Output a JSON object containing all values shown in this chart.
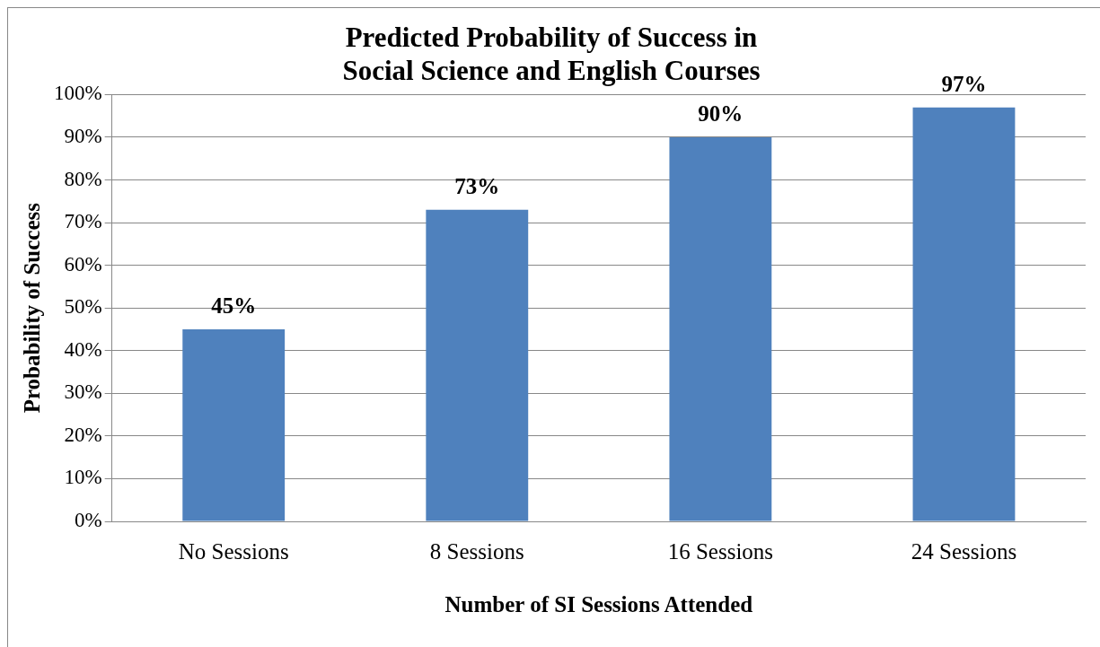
{
  "chart_data": {
    "type": "bar",
    "title": [
      "Predicted Probability of Success in",
      "Social Science and English Courses"
    ],
    "xlabel": "Number of SI Sessions Attended",
    "ylabel": "Probability of Success",
    "categories": [
      "No Sessions",
      "8 Sessions",
      "16 Sessions",
      "24 Sessions"
    ],
    "values": [
      45,
      73,
      90,
      97
    ],
    "color": "#4f81bd",
    "value_labels": [
      "45%",
      "73%",
      "90%",
      "97%"
    ],
    "ylim": [
      0,
      100
    ],
    "yticks": [
      {
        "value": 0,
        "label": "0%"
      },
      {
        "value": 10,
        "label": "10%"
      },
      {
        "value": 20,
        "label": "20%"
      },
      {
        "value": 30,
        "label": "30%"
      },
      {
        "value": 40,
        "label": "40%"
      },
      {
        "value": 50,
        "label": "50%"
      },
      {
        "value": 60,
        "label": "60%"
      },
      {
        "value": 70,
        "label": "70%"
      },
      {
        "value": 80,
        "label": "80%"
      },
      {
        "value": 90,
        "label": "90%"
      },
      {
        "value": 100,
        "label": "100%"
      }
    ],
    "grid": "y",
    "legend": false
  }
}
